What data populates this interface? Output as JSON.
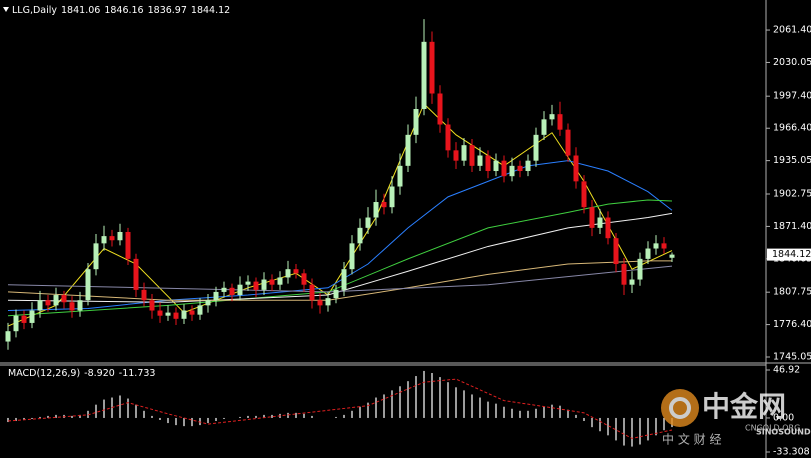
{
  "chart_data": [
    {
      "type": "candlestick",
      "title": "LLG,Daily",
      "open": [
        1760,
        1770,
        1785,
        1778,
        1790,
        1800,
        1795,
        1805,
        1798,
        1790,
        1800,
        1830,
        1855,
        1862,
        1858,
        1866,
        1840,
        1810,
        1800,
        1790,
        1785,
        1788,
        1782,
        1790,
        1786,
        1795,
        1800,
        1808,
        1812,
        1805,
        1815,
        1818,
        1810,
        1820,
        1815,
        1822,
        1830,
        1826,
        1815,
        1800,
        1795,
        1802,
        1810,
        1830,
        1855,
        1870,
        1880,
        1895,
        1890,
        1910,
        1930,
        1960,
        1985,
        2050,
        2000,
        1970,
        1945,
        1935,
        1950,
        1930,
        1940,
        1925,
        1935,
        1920,
        1930,
        1925,
        1935,
        1960,
        1975,
        1980,
        1965,
        1940,
        1915,
        1890,
        1870,
        1880,
        1860,
        1835,
        1815,
        1820,
        1840,
        1850,
        1855,
        1841.06
      ],
      "high": [
        1778,
        1791,
        1790,
        1798,
        1809,
        1805,
        1812,
        1809,
        1804,
        1808,
        1836,
        1864,
        1872,
        1868,
        1874,
        1870,
        1845,
        1817,
        1806,
        1798,
        1795,
        1793,
        1796,
        1795,
        1802,
        1806,
        1813,
        1818,
        1816,
        1823,
        1824,
        1822,
        1827,
        1825,
        1828,
        1838,
        1835,
        1830,
        1821,
        1807,
        1808,
        1815,
        1837,
        1863,
        1879,
        1890,
        1907,
        1903,
        1920,
        1942,
        1970,
        1997,
        2072,
        2060,
        2008,
        1976,
        1953,
        1957,
        1956,
        1948,
        1945,
        1942,
        1940,
        1938,
        1935,
        1941,
        1967,
        1983,
        1989,
        1992,
        1971,
        1948,
        1921,
        1897,
        1888,
        1886,
        1865,
        1841,
        1828,
        1846,
        1857,
        1863,
        1861,
        1846.16
      ],
      "low": [
        1752,
        1764,
        1772,
        1773,
        1783,
        1789,
        1790,
        1792,
        1783,
        1784,
        1795,
        1824,
        1848,
        1852,
        1853,
        1834,
        1803,
        1794,
        1782,
        1778,
        1780,
        1776,
        1777,
        1780,
        1781,
        1788,
        1794,
        1803,
        1799,
        1800,
        1809,
        1803,
        1805,
        1809,
        1810,
        1816,
        1821,
        1808,
        1792,
        1787,
        1789,
        1797,
        1804,
        1825,
        1848,
        1864,
        1872,
        1883,
        1884,
        1902,
        1924,
        1952,
        1979,
        1990,
        1962,
        1938,
        1927,
        1930,
        1924,
        1925,
        1918,
        1920,
        1914,
        1915,
        1919,
        1920,
        1929,
        1955,
        1969,
        1959,
        1934,
        1908,
        1884,
        1862,
        1864,
        1854,
        1827,
        1805,
        1807,
        1814,
        1835,
        1844,
        1845,
        1836.97
      ],
      "close": [
        1770,
        1785,
        1778,
        1790,
        1800,
        1795,
        1805,
        1798,
        1790,
        1800,
        1830,
        1855,
        1862,
        1858,
        1866,
        1840,
        1810,
        1800,
        1790,
        1785,
        1788,
        1782,
        1790,
        1786,
        1795,
        1800,
        1808,
        1812,
        1805,
        1815,
        1818,
        1810,
        1820,
        1815,
        1822,
        1830,
        1826,
        1815,
        1800,
        1795,
        1802,
        1810,
        1830,
        1855,
        1870,
        1880,
        1895,
        1890,
        1910,
        1930,
        1960,
        1985,
        2050,
        2000,
        1970,
        1945,
        1935,
        1950,
        1930,
        1940,
        1925,
        1935,
        1920,
        1930,
        1925,
        1935,
        1960,
        1975,
        1980,
        1965,
        1940,
        1915,
        1890,
        1870,
        1880,
        1860,
        1835,
        1815,
        1820,
        1840,
        1850,
        1855,
        1850,
        1844.12
      ],
      "up_color": "#b8f0b8",
      "down_color": "#e8141c",
      "overlays": [
        {
          "color": "#f0e020",
          "x": [
            0,
            6,
            12,
            16,
            22,
            30,
            36,
            40,
            46,
            52,
            56,
            62,
            68,
            72,
            78,
            83
          ],
          "values": [
            1775,
            1795,
            1850,
            1835,
            1788,
            1812,
            1826,
            1805,
            1880,
            1990,
            1960,
            1930,
            1962,
            1915,
            1830,
            1848
          ]
        },
        {
          "color": "#2a7fff",
          "x": [
            0,
            10,
            20,
            30,
            40,
            45,
            50,
            55,
            60,
            65,
            70,
            75,
            80,
            83
          ],
          "values": [
            1790,
            1792,
            1800,
            1805,
            1812,
            1835,
            1870,
            1900,
            1915,
            1930,
            1935,
            1925,
            1905,
            1887
          ]
        },
        {
          "color": "#40d040",
          "x": [
            0,
            20,
            40,
            50,
            60,
            70,
            75,
            80,
            83
          ],
          "values": [
            1785,
            1795,
            1808,
            1840,
            1870,
            1885,
            1893,
            1897,
            1896
          ]
        },
        {
          "color": "#f0f0f0",
          "x": [
            0,
            20,
            40,
            50,
            60,
            70,
            80,
            83
          ],
          "values": [
            1800,
            1798,
            1805,
            1828,
            1852,
            1870,
            1880,
            1884
          ]
        },
        {
          "color": "#d8b878",
          "x": [
            0,
            20,
            40,
            50,
            60,
            70,
            80,
            83
          ],
          "values": [
            1808,
            1800,
            1800,
            1812,
            1825,
            1835,
            1838,
            1838
          ]
        },
        {
          "color": "#8888a8",
          "x": [
            0,
            40,
            60,
            83
          ],
          "values": [
            1815,
            1808,
            1815,
            1833
          ]
        }
      ],
      "ylim": [
        1740.2,
        2086.6
      ],
      "yticks": [
        {
          "value": 2061.4,
          "label": "2061.40"
        },
        2030.05,
        {
          "value": 1997.4,
          "label": "1997.40"
        },
        {
          "value": 1966.4,
          "label": "1966.40"
        },
        1935.05,
        1902.75,
        {
          "value": 1871.4,
          "label": "1871.40"
        },
        1840.05,
        1807.75,
        {
          "value": 1776.4,
          "label": "1776.40"
        },
        1745.05
      ]
    },
    {
      "type": "macd",
      "title": "MACD(12,26,9)",
      "readout": [
        "-8.920",
        "-11.733"
      ],
      "color": "#d0d0d0",
      "values": [
        -4,
        -3,
        -2,
        -1,
        1,
        2,
        3,
        3,
        2,
        3,
        7,
        13,
        18,
        20,
        22,
        19,
        13,
        7,
        2,
        -2,
        -5,
        -7,
        -8,
        -8,
        -7,
        -5,
        -3,
        -1,
        0,
        1,
        2,
        2,
        3,
        3,
        4,
        5,
        5,
        4,
        2,
        0,
        0,
        1,
        3,
        7,
        11,
        15,
        20,
        23,
        27,
        31,
        36,
        41,
        46,
        44,
        40,
        35,
        30,
        27,
        23,
        20,
        16,
        14,
        11,
        9,
        7,
        7,
        9,
        11,
        13,
        12,
        8,
        3,
        -3,
        -9,
        -13,
        -17,
        -22,
        -27,
        -28,
        -26,
        -22,
        -17,
        -12,
        -8.92
      ],
      "signal": {
        "color": "#e02020",
        "x": [
          0,
          10,
          15,
          20,
          25,
          35,
          45,
          52,
          56,
          62,
          68,
          72,
          78,
          83
        ],
        "values": [
          -3,
          3,
          15,
          4,
          -6,
          3,
          12,
          35,
          38,
          17,
          10,
          5,
          -20,
          -11.733
        ]
      },
      "ylim": [
        -33.308,
        46.92
      ],
      "yticks": [
        46.92,
        {
          "value": 0,
          "label": "0.00"
        },
        -33.308
      ]
    }
  ],
  "watermark": {
    "brand": "中金网",
    "site": "CNGOLD.ORG",
    "tagline": "中 文 财 经",
    "partner": "SINOSOUND"
  }
}
